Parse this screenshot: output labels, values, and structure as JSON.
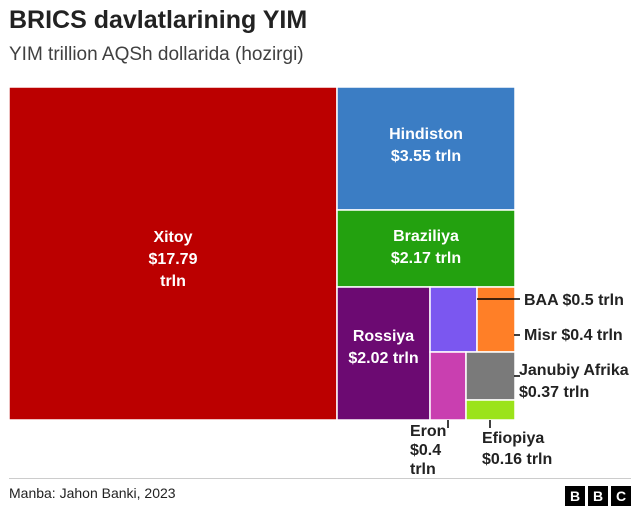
{
  "title": "BRICS davlatlarining YIM",
  "subtitle": "YIM trillion AQSh dollarida (hozirgi)",
  "source": "Manba: Jahon Banki, 2023",
  "logo": [
    "B",
    "B",
    "C"
  ],
  "chart_data": {
    "type": "treemap",
    "title": "BRICS davlatlarining YIM",
    "subtitle": "YIM trillion AQSh dollarida (hozirgi)",
    "unit": "trln",
    "items": [
      {
        "name": "Xitoy",
        "value": 17.79,
        "color": "#bb0000",
        "label_lines": [
          "Xitoy",
          "$17.79",
          "trln"
        ],
        "label_position": "inside"
      },
      {
        "name": "Hindiston",
        "value": 3.55,
        "color": "#3b7dc4",
        "label_lines": [
          "Hindiston",
          "$3.55 trln"
        ],
        "label_position": "inside"
      },
      {
        "name": "Braziliya",
        "value": 2.17,
        "color": "#23a10f",
        "label_lines": [
          "Braziliya",
          "$2.17 trln"
        ],
        "label_position": "inside"
      },
      {
        "name": "Rossiya",
        "value": 2.02,
        "color": "#6c0a72",
        "label_lines": [
          "Rossiya",
          "$2.02 trln"
        ],
        "label_position": "inside"
      },
      {
        "name": "BAA",
        "value": 0.5,
        "color": "#7b57f0",
        "label_lines": [
          "BAA $0.5 trln"
        ],
        "label_position": "outside-right"
      },
      {
        "name": "Misr",
        "value": 0.4,
        "color": "#ff7f27",
        "label_lines": [
          "Misr $0.4 trln"
        ],
        "label_position": "outside-right"
      },
      {
        "name": "Eron",
        "value": 0.4,
        "color": "#c93fb0",
        "label_lines": [
          "Eron",
          "$0.4",
          "trln"
        ],
        "label_position": "outside-below"
      },
      {
        "name": "Janubiy Afrika",
        "value": 0.37,
        "color": "#7a7a7a",
        "label_lines": [
          "Janubiy Afrika",
          "$0.37 trln"
        ],
        "label_position": "outside-right"
      },
      {
        "name": "Efiopiya",
        "value": 0.16,
        "color": "#9be31a",
        "label_lines": [
          "Efiopiya",
          "$0.16 trln"
        ],
        "label_position": "outside-below"
      }
    ]
  }
}
